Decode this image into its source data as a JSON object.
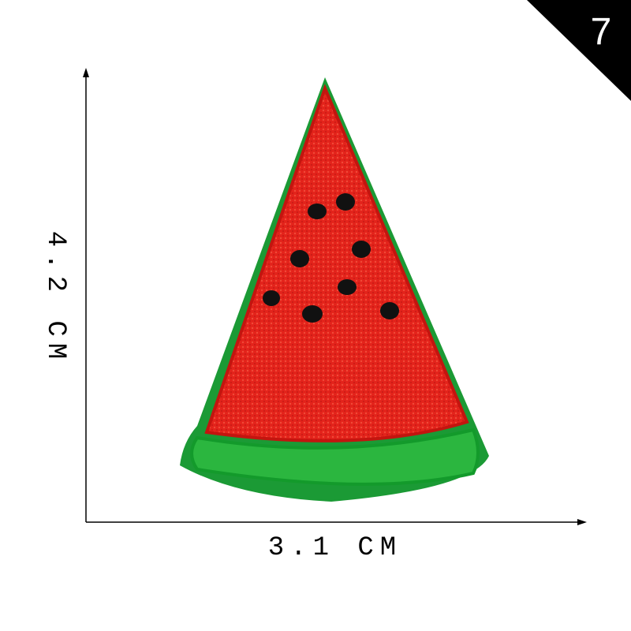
{
  "badge": "7",
  "height_label": "4.2 CM",
  "width_label": "3.1 CM"
}
